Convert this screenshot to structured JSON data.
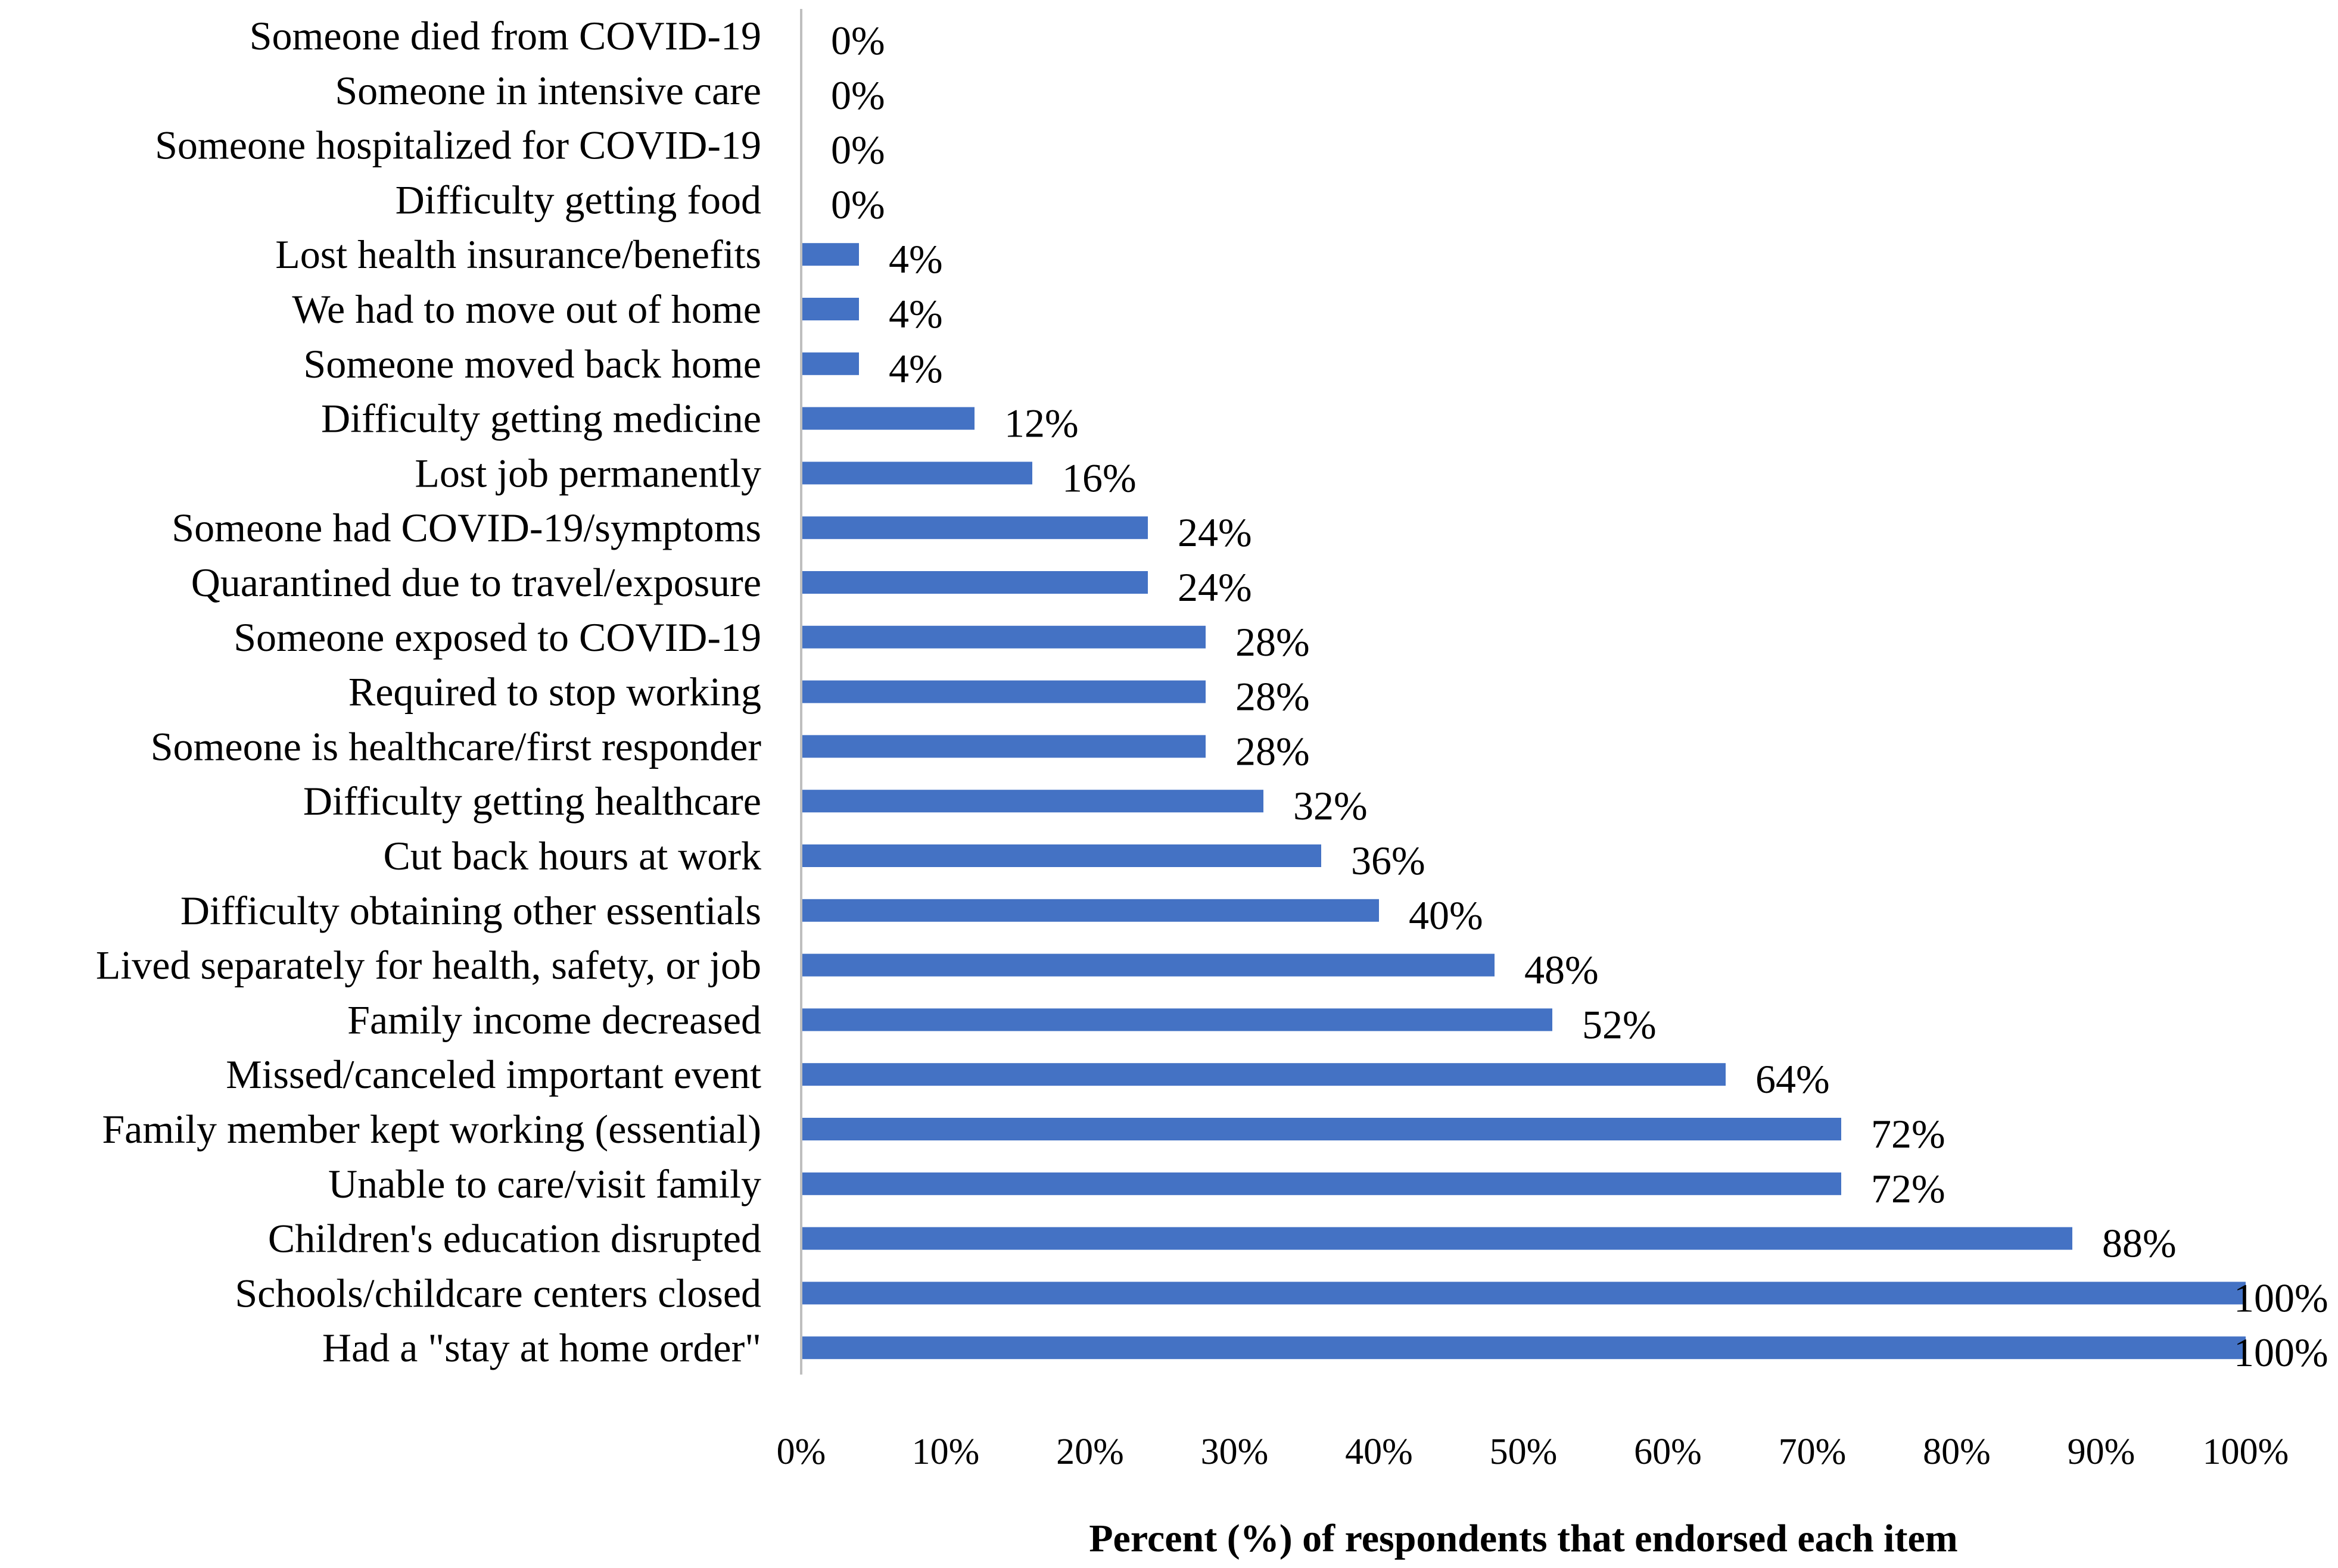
{
  "chart_data": {
    "type": "bar",
    "orientation": "horizontal",
    "title": "",
    "xlabel": "Percent (%) of respondents that endorsed each item",
    "ylabel": "",
    "xlim": [
      0,
      100
    ],
    "grid": false,
    "legend": "none",
    "bar_color": "#4472C4",
    "categories": [
      "Someone died from COVID-19",
      "Someone in intensive care",
      "Someone hospitalized for COVID-19",
      "Difficulty getting food",
      "Lost health insurance/benefits",
      "We had to move out of home",
      "Someone moved back home",
      "Difficulty getting medicine",
      "Lost job permanently",
      "Someone had COVID-19/symptoms",
      "Quarantined due to travel/exposure",
      "Someone exposed to COVID-19",
      "Required to stop working",
      "Someone is healthcare/first responder",
      "Difficulty getting healthcare",
      "Cut back hours at work",
      "Difficulty obtaining other essentials",
      "Lived separately for health, safety, or job",
      "Family income decreased",
      "Missed/canceled important event",
      "Family member kept working (essential)",
      "Unable to care/visit family",
      "Children's education disrupted",
      "Schools/childcare centers closed",
      "Had a \"stay at home order\""
    ],
    "values": [
      0,
      0,
      0,
      0,
      4,
      4,
      4,
      12,
      16,
      24,
      24,
      28,
      28,
      28,
      32,
      36,
      40,
      48,
      52,
      64,
      72,
      72,
      88,
      100,
      100
    ],
    "value_labels": [
      "0%",
      "0%",
      "0%",
      "0%",
      "4%",
      "4%",
      "4%",
      "12%",
      "16%",
      "24%",
      "24%",
      "28%",
      "28%",
      "28%",
      "32%",
      "36%",
      "40%",
      "48%",
      "52%",
      "64%",
      "72%",
      "72%",
      "88%",
      "100%",
      "100%"
    ],
    "x_ticks": [
      0,
      10,
      20,
      30,
      40,
      50,
      60,
      70,
      80,
      90,
      100
    ],
    "x_tick_labels": [
      "0%",
      "10%",
      "20%",
      "30%",
      "40%",
      "50%",
      "60%",
      "70%",
      "80%",
      "90%",
      "100%"
    ]
  }
}
